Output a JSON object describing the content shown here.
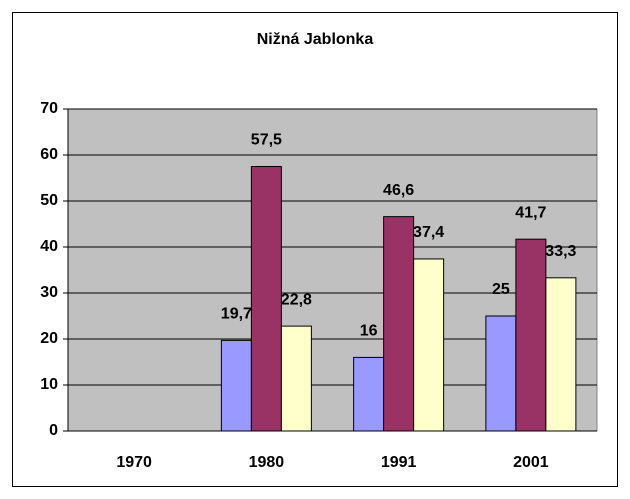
{
  "chart_data": {
    "type": "bar",
    "title": "Nižná Jablonka",
    "categories": [
      "1970",
      "1980",
      "1991",
      "2001"
    ],
    "series": [
      {
        "color": "#9999ff",
        "values": [
          null,
          19.7,
          16,
          25
        ],
        "value_labels": [
          null,
          "19,7",
          "16",
          "25"
        ]
      },
      {
        "color": "#993366",
        "values": [
          null,
          57.5,
          46.6,
          41.7
        ],
        "value_labels": [
          null,
          "57,5",
          "46,6",
          "41,7"
        ]
      },
      {
        "color": "#ffffcc",
        "values": [
          null,
          22.8,
          37.4,
          33.3
        ],
        "value_labels": [
          null,
          "22,8",
          "37,4",
          "33,3"
        ]
      }
    ],
    "ylim": [
      0,
      70
    ],
    "yticks": [
      0,
      10,
      20,
      30,
      40,
      50,
      60,
      70
    ],
    "grid": true,
    "plot_background": "#c0c0c0"
  }
}
